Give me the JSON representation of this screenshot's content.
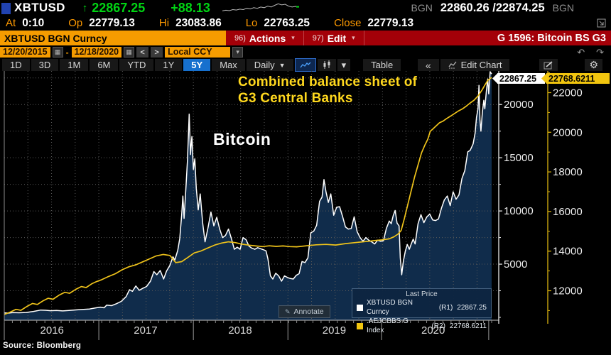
{
  "icons": {
    "up_arrow": "↑",
    "caret_down": "▾",
    "caret_down_big": "▼",
    "calendar": "▦",
    "prev": "<",
    "next": ">",
    "undo": "↶",
    "redo": "↷",
    "gear": "⚙",
    "pencil": "✎",
    "collapse": "«"
  },
  "header": {
    "ticker": "XBTUSD",
    "last_price": "22867.25",
    "change": "+88.13",
    "bgn_left": "BGN",
    "bid_ask": "22860.26 /22874.25",
    "bgn_right": "BGN",
    "sparkline": [
      0.82,
      0.76,
      0.8,
      0.7,
      0.74,
      0.66,
      0.7,
      0.58,
      0.64,
      0.52,
      0.58,
      0.46,
      0.52,
      0.38,
      0.46,
      0.3,
      0.16,
      0.26,
      0.2,
      0.38,
      0.46,
      0.4,
      0.44
    ],
    "stats": [
      {
        "label": "At",
        "value": "0:10"
      },
      {
        "label": "Op",
        "value": "22779.13"
      },
      {
        "label": "Hi",
        "value": "23083.86"
      },
      {
        "label": "Lo",
        "value": "22763.25"
      },
      {
        "label": "Close",
        "value": "22779.13"
      }
    ]
  },
  "command_bar": {
    "security": "XBTUSD BGN Curncy",
    "actions_num": "96)",
    "actions_label": "Actions",
    "edit_num": "97)",
    "edit_label": "Edit",
    "title": "G 1596: Bitcoin BS G3"
  },
  "controls": {
    "date_from": "12/20/2015",
    "date_sep": "-",
    "date_to": "12/18/2020",
    "currency": "Local CCY"
  },
  "toolbar": {
    "ranges": [
      "1D",
      "3D",
      "1M",
      "6M",
      "YTD",
      "1Y",
      "5Y",
      "Max"
    ],
    "selected_range": "5Y",
    "period": "Daily",
    "table": "Table",
    "edit_chart": "Edit Chart"
  },
  "chart": {
    "annotation_line1": "Combined balance sheet of",
    "annotation_line2": "G3 Central Banks",
    "bitcoin_label": "Bitcoin",
    "legend": {
      "title": "Last Price",
      "items": [
        {
          "swatch": "#ffffff",
          "name": "XBTUSD BGN Curncy",
          "axis": "(R1)",
          "value": "22867.25"
        },
        {
          "swatch": "#f2c50f",
          "name": ".AEJCBBS G Index",
          "axis": "(R2)",
          "value": "22768.6211"
        }
      ]
    },
    "annotate_label": "Annotate",
    "source_label": "Source: Bloomberg"
  },
  "chart_data": {
    "type": "line",
    "title": "G 1596: Bitcoin BS G3",
    "grid": true,
    "legend_position": "bottom-right",
    "last_price_labels": {
      "r1": "22867.25",
      "r2": "22768.6211"
    },
    "axes": {
      "r1": {
        "side": "right-inner",
        "min": 0,
        "max": 23150,
        "ticks": [
          20000,
          15000,
          10000,
          5000
        ],
        "minor_step": 2500,
        "color": "#e8e8e8"
      },
      "r2": {
        "side": "right-outer",
        "min": 10656,
        "max": 23093,
        "ticks": [
          22000,
          20000,
          18000,
          16000,
          14000,
          12000
        ],
        "minor_step": 1000,
        "color": "#d9b20f"
      }
    },
    "x_axis": {
      "start": "12/20/2015",
      "end": "12/18/2020",
      "years": [
        {
          "label": "2016",
          "center": 0.098
        },
        {
          "label": "2017",
          "center": 0.29
        },
        {
          "label": "2018",
          "center": 0.484
        },
        {
          "label": "2019",
          "center": 0.677
        },
        {
          "label": "2020",
          "center": 0.88
        }
      ],
      "separators": [
        0.0,
        0.194,
        0.388,
        0.582,
        0.774,
        0.994
      ],
      "quarter_step": 0.0485,
      "month_ticks": 60
    },
    "series": [
      {
        "name": "XBTUSD BGN Curncy",
        "axis": "r1",
        "color": "#ffffff",
        "fill": "#102c4b",
        "last": 22867.25,
        "points": [
          [
            0.0,
            430
          ],
          [
            0.008,
            400
          ],
          [
            0.018,
            445
          ],
          [
            0.03,
            435
          ],
          [
            0.045,
            460
          ],
          [
            0.06,
            560
          ],
          [
            0.075,
            690
          ],
          [
            0.085,
            665
          ],
          [
            0.095,
            625
          ],
          [
            0.107,
            655
          ],
          [
            0.12,
            610
          ],
          [
            0.133,
            645
          ],
          [
            0.147,
            700
          ],
          [
            0.16,
            740
          ],
          [
            0.175,
            790
          ],
          [
            0.19,
            905
          ],
          [
            0.197,
            960
          ],
          [
            0.205,
            900
          ],
          [
            0.21,
            1150
          ],
          [
            0.22,
            1100
          ],
          [
            0.23,
            1280
          ],
          [
            0.24,
            1500
          ],
          [
            0.25,
            1950
          ],
          [
            0.257,
            2600
          ],
          [
            0.263,
            2450
          ],
          [
            0.27,
            2950
          ],
          [
            0.277,
            2550
          ],
          [
            0.285,
            2750
          ],
          [
            0.292,
            2900
          ],
          [
            0.3,
            3400
          ],
          [
            0.307,
            4300
          ],
          [
            0.313,
            4000
          ],
          [
            0.32,
            4400
          ],
          [
            0.327,
            3600
          ],
          [
            0.333,
            4350
          ],
          [
            0.34,
            4900
          ],
          [
            0.346,
            5700
          ],
          [
            0.35,
            5400
          ],
          [
            0.356,
            6300
          ],
          [
            0.36,
            7400
          ],
          [
            0.364,
            9600
          ],
          [
            0.3665,
            11400
          ],
          [
            0.369,
            9300
          ],
          [
            0.372,
            11600
          ],
          [
            0.376,
            14800
          ],
          [
            0.3795,
            19100
          ],
          [
            0.382,
            15300
          ],
          [
            0.385,
            17000
          ],
          [
            0.388,
            13900
          ],
          [
            0.391,
            14900
          ],
          [
            0.394,
            12100
          ],
          [
            0.398,
            10100
          ],
          [
            0.402,
            11600
          ],
          [
            0.407,
            8900
          ],
          [
            0.412,
            7100
          ],
          [
            0.418,
            8400
          ],
          [
            0.424,
            9900
          ],
          [
            0.43,
            8600
          ],
          [
            0.436,
            9400
          ],
          [
            0.442,
            8300
          ],
          [
            0.448,
            7500
          ],
          [
            0.454,
            7700
          ],
          [
            0.46,
            8300
          ],
          [
            0.466,
            7400
          ],
          [
            0.472,
            6400
          ],
          [
            0.478,
            6600
          ],
          [
            0.484,
            6400
          ],
          [
            0.49,
            7500
          ],
          [
            0.496,
            7300
          ],
          [
            0.502,
            6700
          ],
          [
            0.508,
            6500
          ],
          [
            0.514,
            6400
          ],
          [
            0.52,
            6550
          ],
          [
            0.526,
            6450
          ],
          [
            0.532,
            6350
          ],
          [
            0.537,
            6250
          ],
          [
            0.541,
            5500
          ],
          [
            0.546,
            3900
          ],
          [
            0.551,
            3600
          ],
          [
            0.557,
            4150
          ],
          [
            0.563,
            3900
          ],
          [
            0.569,
            3400
          ],
          [
            0.575,
            3900
          ],
          [
            0.581,
            3750
          ],
          [
            0.587,
            3650
          ],
          [
            0.593,
            3600
          ],
          [
            0.599,
            3950
          ],
          [
            0.605,
            4100
          ],
          [
            0.611,
            5250
          ],
          [
            0.617,
            5150
          ],
          [
            0.623,
            5600
          ],
          [
            0.629,
            7950
          ],
          [
            0.635,
            8100
          ],
          [
            0.641,
            8650
          ],
          [
            0.647,
            10900
          ],
          [
            0.652,
            11300
          ],
          [
            0.656,
            12950
          ],
          [
            0.66,
            11800
          ],
          [
            0.665,
            10800
          ],
          [
            0.67,
            11600
          ],
          [
            0.676,
            9600
          ],
          [
            0.682,
            10350
          ],
          [
            0.688,
            10400
          ],
          [
            0.694,
            9500
          ],
          [
            0.7,
            8500
          ],
          [
            0.706,
            8300
          ],
          [
            0.712,
            8350
          ],
          [
            0.718,
            9450
          ],
          [
            0.724,
            8050
          ],
          [
            0.73,
            7500
          ],
          [
            0.736,
            7150
          ],
          [
            0.742,
            7500
          ],
          [
            0.748,
            7250
          ],
          [
            0.754,
            7100
          ],
          [
            0.76,
            6900
          ],
          [
            0.766,
            7250
          ],
          [
            0.772,
            7150
          ],
          [
            0.778,
            7200
          ],
          [
            0.784,
            8350
          ],
          [
            0.79,
            9050
          ],
          [
            0.794,
            8800
          ],
          [
            0.798,
            9550
          ],
          [
            0.802,
            10050
          ],
          [
            0.806,
            8850
          ],
          [
            0.81,
            8600
          ],
          [
            0.8125,
            5600
          ],
          [
            0.8155,
            4000
          ],
          [
            0.819,
            5300
          ],
          [
            0.823,
            6250
          ],
          [
            0.827,
            6850
          ],
          [
            0.831,
            6400
          ],
          [
            0.835,
            6900
          ],
          [
            0.839,
            7350
          ],
          [
            0.843,
            6900
          ],
          [
            0.849,
            8800
          ],
          [
            0.855,
            9650
          ],
          [
            0.861,
            8900
          ],
          [
            0.867,
            9450
          ],
          [
            0.873,
            9700
          ],
          [
            0.879,
            9150
          ],
          [
            0.885,
            9100
          ],
          [
            0.891,
            9250
          ],
          [
            0.897,
            10250
          ],
          [
            0.903,
            11050
          ],
          [
            0.909,
            11400
          ],
          [
            0.915,
            10500
          ],
          [
            0.921,
            11800
          ],
          [
            0.927,
            11100
          ],
          [
            0.933,
            11500
          ],
          [
            0.939,
            13050
          ],
          [
            0.945,
            13800
          ],
          [
            0.951,
            15550
          ],
          [
            0.956,
            15700
          ],
          [
            0.962,
            16300
          ],
          [
            0.966,
            17300
          ],
          [
            0.969,
            18800
          ],
          [
            0.972,
            19600
          ],
          [
            0.974,
            21800
          ],
          [
            0.976,
            18600
          ],
          [
            0.978,
            17500
          ],
          [
            0.981,
            19300
          ],
          [
            0.984,
            20400
          ],
          [
            0.986,
            19600
          ],
          [
            0.989,
            21200
          ],
          [
            0.992,
            22400
          ],
          [
            0.994,
            21000
          ],
          [
            0.997,
            23080
          ],
          [
            1.0,
            22867.25
          ]
        ]
      },
      {
        "name": ".AEJCBBS G Index",
        "axis": "r2",
        "color": "#efc31a",
        "last": 22768.6211,
        "points": [
          [
            0.0,
            10800
          ],
          [
            0.012,
            10920
          ],
          [
            0.024,
            11060
          ],
          [
            0.034,
            11010
          ],
          [
            0.046,
            11200
          ],
          [
            0.058,
            11360
          ],
          [
            0.068,
            11310
          ],
          [
            0.08,
            11500
          ],
          [
            0.09,
            11620
          ],
          [
            0.1,
            11570
          ],
          [
            0.112,
            11770
          ],
          [
            0.124,
            11920
          ],
          [
            0.134,
            11870
          ],
          [
            0.146,
            12060
          ],
          [
            0.158,
            12210
          ],
          [
            0.168,
            12160
          ],
          [
            0.18,
            12360
          ],
          [
            0.19,
            12470
          ],
          [
            0.2,
            12560
          ],
          [
            0.214,
            12720
          ],
          [
            0.228,
            12860
          ],
          [
            0.242,
            13060
          ],
          [
            0.256,
            13210
          ],
          [
            0.27,
            13310
          ],
          [
            0.284,
            13460
          ],
          [
            0.298,
            13610
          ],
          [
            0.312,
            13760
          ],
          [
            0.326,
            13830
          ],
          [
            0.34,
            13780
          ],
          [
            0.352,
            13420
          ],
          [
            0.364,
            13470
          ],
          [
            0.376,
            13670
          ],
          [
            0.39,
            13910
          ],
          [
            0.404,
            14010
          ],
          [
            0.418,
            14160
          ],
          [
            0.432,
            14310
          ],
          [
            0.446,
            14410
          ],
          [
            0.46,
            14470
          ],
          [
            0.474,
            14430
          ],
          [
            0.488,
            14350
          ],
          [
            0.502,
            14300
          ],
          [
            0.516,
            14260
          ],
          [
            0.53,
            14230
          ],
          [
            0.544,
            14270
          ],
          [
            0.558,
            14240
          ],
          [
            0.572,
            14260
          ],
          [
            0.586,
            14230
          ],
          [
            0.6,
            14220
          ],
          [
            0.62,
            14270
          ],
          [
            0.64,
            14320
          ],
          [
            0.66,
            14340
          ],
          [
            0.68,
            14310
          ],
          [
            0.7,
            14380
          ],
          [
            0.72,
            14430
          ],
          [
            0.74,
            14480
          ],
          [
            0.76,
            14530
          ],
          [
            0.775,
            14570
          ],
          [
            0.79,
            14620
          ],
          [
            0.8,
            14730
          ],
          [
            0.808,
            14860
          ],
          [
            0.8145,
            15050
          ],
          [
            0.821,
            15650
          ],
          [
            0.828,
            16350
          ],
          [
            0.835,
            17050
          ],
          [
            0.842,
            17750
          ],
          [
            0.849,
            18350
          ],
          [
            0.856,
            18950
          ],
          [
            0.863,
            19350
          ],
          [
            0.869,
            19650
          ],
          [
            0.874,
            20050
          ],
          [
            0.88,
            20180
          ],
          [
            0.886,
            20320
          ],
          [
            0.893,
            20480
          ],
          [
            0.9,
            20560
          ],
          [
            0.908,
            20700
          ],
          [
            0.916,
            20820
          ],
          [
            0.924,
            20950
          ],
          [
            0.932,
            21080
          ],
          [
            0.94,
            21180
          ],
          [
            0.948,
            21320
          ],
          [
            0.956,
            21480
          ],
          [
            0.964,
            21620
          ],
          [
            0.972,
            21830
          ],
          [
            0.98,
            22120
          ],
          [
            0.986,
            22380
          ],
          [
            0.992,
            22620
          ],
          [
            1.0,
            22768.62
          ]
        ]
      }
    ]
  }
}
